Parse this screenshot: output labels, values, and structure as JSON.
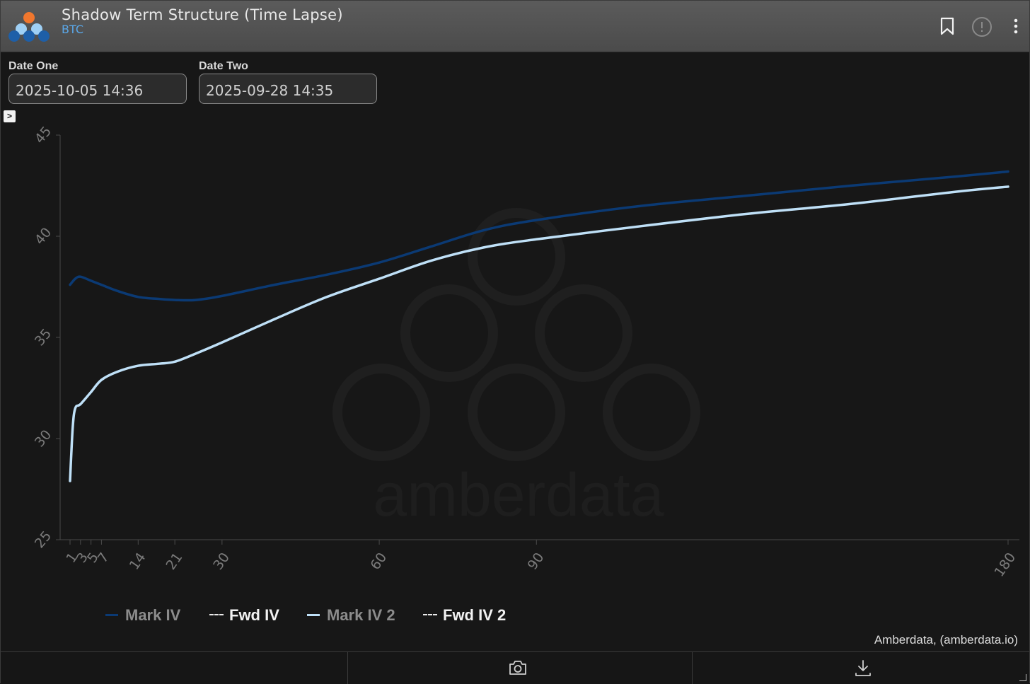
{
  "header": {
    "title": "Shadow Term Structure (Time Lapse)",
    "subtitle": "BTC",
    "icons": [
      "app-logo-icon",
      "bookmark-icon",
      "info-icon",
      "more-vertical-icon"
    ]
  },
  "controls": {
    "date_one_label": "Date One",
    "date_one_value": "2025-10-05 14:36",
    "date_two_label": "Date Two",
    "date_two_value": "2025-09-28 14:35",
    "toggle_glyph": ">"
  },
  "watermark": "amberdata",
  "credit": "Amberdata, (amberdata.io)",
  "footer": {
    "icons": [
      "camera-icon",
      "download-icon"
    ]
  },
  "chart_data": {
    "type": "line",
    "title": "",
    "xlabel": "",
    "ylabel": "",
    "xlim": [
      1,
      180
    ],
    "ylim": [
      25,
      45
    ],
    "x_ticks": [
      1,
      3,
      5,
      7,
      14,
      21,
      30,
      60,
      90,
      180
    ],
    "y_ticks": [
      25,
      30,
      35,
      40,
      45
    ],
    "grid": false,
    "legend_position": "bottom-left",
    "series": [
      {
        "name": "Mark IV",
        "color": "#0b3a74",
        "style": "solid",
        "x": [
          1,
          2,
          3,
          5,
          7,
          10,
          14,
          18,
          21,
          25,
          30,
          40,
          50,
          60,
          70,
          80,
          90,
          110,
          130,
          150,
          170,
          180
        ],
        "y": [
          37.6,
          37.9,
          38.0,
          37.8,
          37.6,
          37.3,
          37.0,
          36.9,
          36.85,
          36.85,
          37.05,
          37.6,
          38.1,
          38.7,
          39.5,
          40.3,
          40.8,
          41.5,
          42.0,
          42.5,
          42.95,
          43.2
        ]
      },
      {
        "name": "Fwd IV",
        "color": "#eaeaea",
        "style": "dashed",
        "x": [],
        "y": []
      },
      {
        "name": "Mark IV 2",
        "color": "#bfe0f7",
        "style": "solid",
        "x": [
          1,
          1.5,
          2,
          3,
          5,
          7,
          10,
          14,
          18,
          21,
          25,
          30,
          40,
          50,
          60,
          70,
          80,
          90,
          110,
          130,
          150,
          170,
          180
        ],
        "y": [
          27.9,
          30.5,
          31.5,
          31.7,
          32.3,
          32.9,
          33.3,
          33.6,
          33.7,
          33.8,
          34.2,
          34.75,
          35.9,
          37.0,
          37.9,
          38.8,
          39.45,
          39.85,
          40.5,
          41.1,
          41.6,
          42.2,
          42.45
        ]
      },
      {
        "name": "Fwd IV 2",
        "color": "#eaeaea",
        "style": "dashed",
        "x": [],
        "y": []
      }
    ]
  }
}
